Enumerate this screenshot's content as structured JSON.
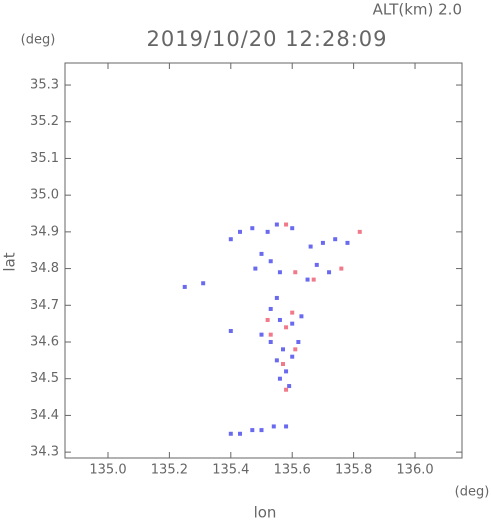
{
  "chart_data": {
    "type": "scatter",
    "title": "2019/10/20 12:28:09",
    "subtitle": "ALT(km) 2.0",
    "x_label": "lon",
    "y_label": "lat",
    "x_unit": "(deg)",
    "y_unit": "(deg)",
    "xlim": [
      134.86,
      136.153
    ],
    "ylim": [
      34.284,
      35.36
    ],
    "xticks": [
      {
        "value": 135,
        "label": "135.0"
      },
      135.2,
      135.4,
      135.6,
      135.8,
      {
        "value": 136,
        "label": "136.0"
      }
    ],
    "yticks": [
      34.3,
      34.4,
      34.5,
      34.6,
      34.7,
      34.8,
      34.9,
      {
        "value": 35,
        "label": "35.0"
      },
      35.1,
      35.2,
      35.3
    ],
    "series": [
      {
        "color": "#6a6af0",
        "x": [
          135.4,
          135.43,
          135.47,
          135.52,
          135.55,
          135.6,
          135.5,
          135.53,
          135.48,
          135.56,
          135.66,
          135.7,
          135.74,
          135.78,
          135.68,
          135.72,
          135.65,
          135.25,
          135.31,
          135.55,
          135.53,
          135.56,
          135.6,
          135.63,
          135.4,
          135.5,
          135.53,
          135.57,
          135.6,
          135.55,
          135.58,
          135.56,
          135.59,
          135.62,
          135.4,
          135.43,
          135.47,
          135.5,
          135.54,
          135.58
        ],
        "values": [
          34.88,
          34.9,
          34.91,
          34.9,
          34.92,
          34.91,
          34.84,
          34.82,
          34.8,
          34.79,
          34.86,
          34.87,
          34.88,
          34.87,
          34.81,
          34.79,
          34.77,
          34.75,
          34.76,
          34.72,
          34.69,
          34.66,
          34.65,
          34.67,
          34.63,
          34.62,
          34.6,
          34.58,
          34.56,
          34.55,
          34.52,
          34.5,
          34.48,
          34.6,
          34.35,
          34.35,
          34.36,
          34.36,
          34.37,
          34.37
        ]
      },
      {
        "color": "#f07a8a",
        "x": [
          135.82,
          135.58,
          135.61,
          135.76,
          135.67,
          135.6,
          135.58,
          135.53,
          135.61,
          135.57,
          135.58,
          135.52
        ],
        "values": [
          34.9,
          34.92,
          34.79,
          34.8,
          34.77,
          34.68,
          34.64,
          34.62,
          34.58,
          34.54,
          34.47,
          34.66
        ]
      }
    ]
  }
}
